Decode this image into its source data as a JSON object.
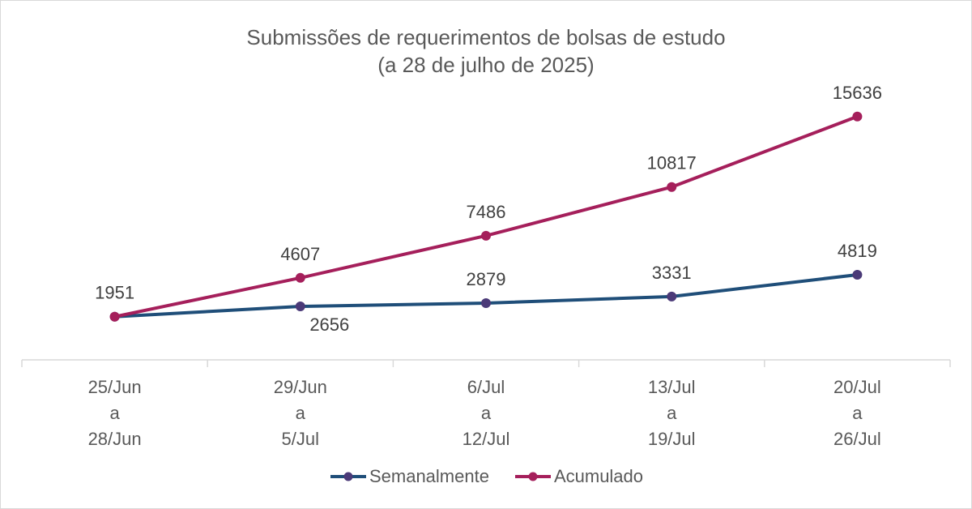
{
  "chart_data": {
    "type": "line",
    "title": "Submissões de requerimentos de bolsas de estudo",
    "subtitle": "(a 28 de julho de 2025)",
    "categories": [
      [
        "25/Jun",
        "a",
        "28/Jun"
      ],
      [
        "29/Jun",
        "a",
        "5/Jul"
      ],
      [
        "6/Jul",
        "a",
        "12/Jul"
      ],
      [
        "13/Jul",
        "a",
        "19/Jul"
      ],
      [
        "20/Jul",
        "a",
        "26/Jul"
      ]
    ],
    "series": [
      {
        "name": "Semanalmente",
        "values": [
          1951,
          2656,
          2879,
          3331,
          4819
        ],
        "color": "#1f4e79",
        "marker_color": "#4b3a78"
      },
      {
        "name": "Acumulado",
        "values": [
          1951,
          4607,
          7486,
          10817,
          15636
        ],
        "color": "#a51f5b",
        "marker_color": "#a51f5b"
      }
    ],
    "ylim": [
      -1000,
      20000
    ],
    "grid": false,
    "legend_position": "bottom"
  }
}
